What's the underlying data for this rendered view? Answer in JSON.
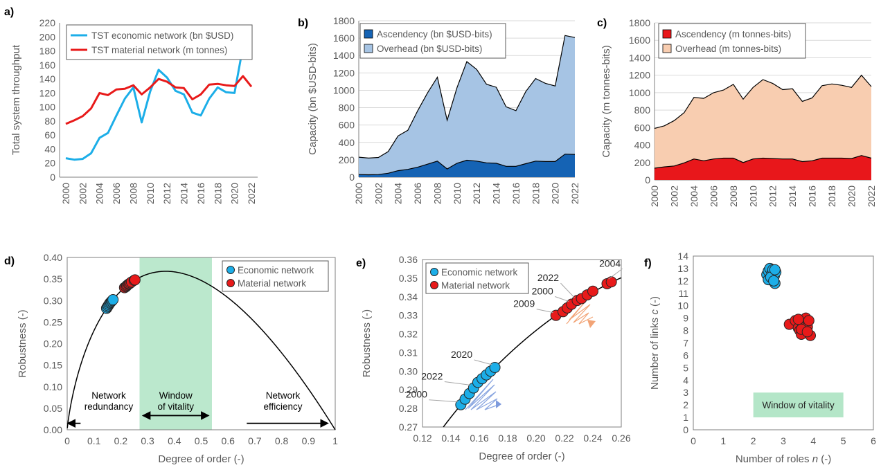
{
  "chart_data": [
    {
      "panel": "a)",
      "type": "line",
      "x": [
        2000,
        2001,
        2002,
        2003,
        2004,
        2005,
        2006,
        2007,
        2008,
        2009,
        2010,
        2011,
        2012,
        2013,
        2014,
        2015,
        2016,
        2017,
        2018,
        2019,
        2020,
        2021,
        2022
      ],
      "xticks": [
        "2000",
        "2002",
        "2004",
        "2006",
        "2008",
        "2010",
        "2012",
        "2014",
        "2016",
        "2018",
        "2020",
        "2022"
      ],
      "ylabel": "Total system throughput",
      "ylim": [
        0,
        220
      ],
      "ystep": 20,
      "legend": "top-left",
      "series": [
        {
          "name": "TST economic network (bn $USD)",
          "color": "#1CAEE8",
          "values": [
            27,
            25,
            26,
            34,
            56,
            63,
            88,
            112,
            128,
            78,
            122,
            153,
            142,
            123,
            118,
            92,
            88,
            112,
            128,
            121,
            120,
            186,
            183
          ]
        },
        {
          "name": "TST material network (m tonnes)",
          "color": "#E81A1A",
          "values": [
            76,
            81,
            87,
            98,
            120,
            117,
            125,
            126,
            131,
            118,
            128,
            140,
            136,
            128,
            127,
            111,
            118,
            132,
            133,
            131,
            130,
            144,
            129
          ]
        }
      ]
    },
    {
      "panel": "b)",
      "type": "area",
      "x": [
        2000,
        2001,
        2002,
        2003,
        2004,
        2005,
        2006,
        2007,
        2008,
        2009,
        2010,
        2011,
        2012,
        2013,
        2014,
        2015,
        2016,
        2017,
        2018,
        2019,
        2020,
        2021,
        2022
      ],
      "xticks": [
        "2000",
        "2002",
        "2004",
        "2006",
        "2008",
        "2010",
        "2012",
        "2014",
        "2016",
        "2018",
        "2020",
        "2022"
      ],
      "ylabel": "Capacity (bn $USD-bits)",
      "ylim": [
        0,
        1800
      ],
      "ystep": 200,
      "legend": "top-left",
      "series": [
        {
          "name": "Ascendency (bn $USD-bits)",
          "color": "#1563B4",
          "values": [
            30,
            28,
            30,
            45,
            75,
            90,
            115,
            150,
            185,
            95,
            160,
            195,
            185,
            165,
            160,
            125,
            125,
            155,
            185,
            180,
            180,
            265,
            262
          ]
        },
        {
          "name": "Overhead (bn $USD-bits)",
          "color": "#A6C4E4",
          "values": [
            200,
            192,
            197,
            250,
            400,
            450,
            650,
            820,
            965,
            560,
            870,
            1135,
            1055,
            905,
            875,
            685,
            640,
            830,
            950,
            900,
            870,
            1365,
            1345
          ]
        }
      ]
    },
    {
      "panel": "c)",
      "type": "area",
      "x": [
        2000,
        2001,
        2002,
        2003,
        2004,
        2005,
        2006,
        2007,
        2008,
        2009,
        2010,
        2011,
        2012,
        2013,
        2014,
        2015,
        2016,
        2017,
        2018,
        2019,
        2020,
        2021,
        2022
      ],
      "xticks": [
        "2000",
        "2002",
        "2004",
        "2006",
        "2008",
        "2010",
        "2012",
        "2014",
        "2016",
        "2018",
        "2020",
        "2022"
      ],
      "ylabel": "Capacity (m tonnes-bits)",
      "ylim": [
        0,
        1800
      ],
      "ystep": 200,
      "legend": "top-left",
      "series": [
        {
          "name": "Ascendency (m tonnes-bits)",
          "color": "#E8171B",
          "values": [
            135,
            150,
            160,
            195,
            240,
            220,
            240,
            250,
            250,
            200,
            240,
            250,
            245,
            240,
            240,
            210,
            220,
            250,
            250,
            250,
            245,
            280,
            250
          ]
        },
        {
          "name": "Overhead (m tonnes-bits)",
          "color": "#F8CDB0",
          "values": [
            455,
            470,
            520,
            575,
            705,
            715,
            760,
            780,
            845,
            725,
            820,
            900,
            860,
            795,
            805,
            690,
            720,
            830,
            850,
            835,
            815,
            920,
            820
          ]
        }
      ]
    },
    {
      "panel": "d)",
      "type": "scatter",
      "xlabel": "Degree of order (-)",
      "ylabel": "Robustness (-)",
      "xlim": [
        0,
        1
      ],
      "xstep": 0.1,
      "ylim": [
        0,
        0.4
      ],
      "ystep": 0.05,
      "window": [
        0.27,
        0.54
      ],
      "legend": "top-right",
      "series": [
        {
          "name": "Economic network",
          "color": "#1CAEE8",
          "x": [
            0.147,
            0.15,
            0.153,
            0.156,
            0.159,
            0.162,
            0.165,
            0.168,
            0.171
          ],
          "y": [
            0.282,
            0.285,
            0.288,
            0.291,
            0.294,
            0.296,
            0.298,
            0.3,
            0.302
          ]
        },
        {
          "name": "Material network",
          "color": "#E81A1A",
          "x": [
            0.214,
            0.219,
            0.222,
            0.225,
            0.229,
            0.232,
            0.236,
            0.24,
            0.25,
            0.253
          ],
          "y": [
            0.33,
            0.332,
            0.334,
            0.336,
            0.338,
            0.339,
            0.341,
            0.343,
            0.347,
            0.348
          ]
        }
      ],
      "annotations": {
        "left_top": "Network",
        "left_bottom": "redundancy",
        "mid_top": "Window",
        "mid_bottom": "of vitality",
        "right_top": "Network",
        "right_bottom": "efficiency"
      }
    },
    {
      "panel": "e)",
      "type": "scatter",
      "xlabel": "Degree of order (-)",
      "ylabel": "Robustness (-)",
      "xlim": [
        0.12,
        0.26
      ],
      "xstep": 0.02,
      "ylim": [
        0.27,
        0.36
      ],
      "ystep": 0.01,
      "legend": "top-left",
      "series": [
        {
          "name": "Economic network",
          "color": "#1CAEE8",
          "x": [
            0.147,
            0.15,
            0.153,
            0.156,
            0.159,
            0.162,
            0.165,
            0.168,
            0.171
          ],
          "y": [
            0.282,
            0.285,
            0.288,
            0.291,
            0.294,
            0.296,
            0.298,
            0.3,
            0.302
          ]
        },
        {
          "name": "Material network",
          "color": "#E81A1A",
          "x": [
            0.214,
            0.219,
            0.222,
            0.225,
            0.229,
            0.232,
            0.236,
            0.24,
            0.25,
            0.253
          ],
          "y": [
            0.33,
            0.332,
            0.334,
            0.336,
            0.338,
            0.339,
            0.341,
            0.343,
            0.347,
            0.348
          ]
        }
      ],
      "labels": [
        {
          "text": "2004",
          "x": 0.253,
          "y": 0.348
        },
        {
          "text": "2022",
          "x": 0.229,
          "y": 0.338
        },
        {
          "text": "2000",
          "x": 0.225,
          "y": 0.336
        },
        {
          "text": "2009",
          "x": 0.214,
          "y": 0.33
        },
        {
          "text": "2020",
          "x": 0.171,
          "y": 0.302
        },
        {
          "text": "2022",
          "x": 0.156,
          "y": 0.291
        },
        {
          "text": "2000",
          "x": 0.147,
          "y": 0.282
        }
      ]
    },
    {
      "panel": "f)",
      "type": "scatter",
      "xlabel": "Number of roles n (-)",
      "ylabel": "Number of links c (-)",
      "xlim": [
        0,
        6
      ],
      "xstep": 1,
      "ylim": [
        0,
        14
      ],
      "ystep": 1,
      "window_label": "Window of vitality",
      "window": {
        "x": [
          2,
          5
        ],
        "y": [
          1,
          3
        ]
      },
      "series": [
        {
          "name": "Economic network",
          "color": "#1CAEE8",
          "x": [
            2.45,
            2.5,
            2.55,
            2.6,
            2.62,
            2.65,
            2.7,
            2.72,
            2.75,
            2.5,
            2.58,
            2.68,
            2.72
          ],
          "y": [
            12.5,
            12.8,
            13.0,
            12.2,
            12.6,
            12.9,
            12.4,
            11.8,
            12.7,
            12.1,
            12.3,
            12.0,
            12.9
          ]
        },
        {
          "name": "Material network",
          "color": "#E81A1A",
          "x": [
            3.2,
            3.4,
            3.5,
            3.55,
            3.6,
            3.65,
            3.7,
            3.75,
            3.8,
            3.85,
            3.9,
            3.5,
            3.6,
            3.8
          ],
          "y": [
            8.5,
            8.8,
            8.2,
            8.0,
            7.7,
            8.4,
            8.6,
            9.0,
            8.3,
            8.8,
            7.6,
            8.9,
            8.1,
            7.9
          ]
        }
      ]
    }
  ]
}
